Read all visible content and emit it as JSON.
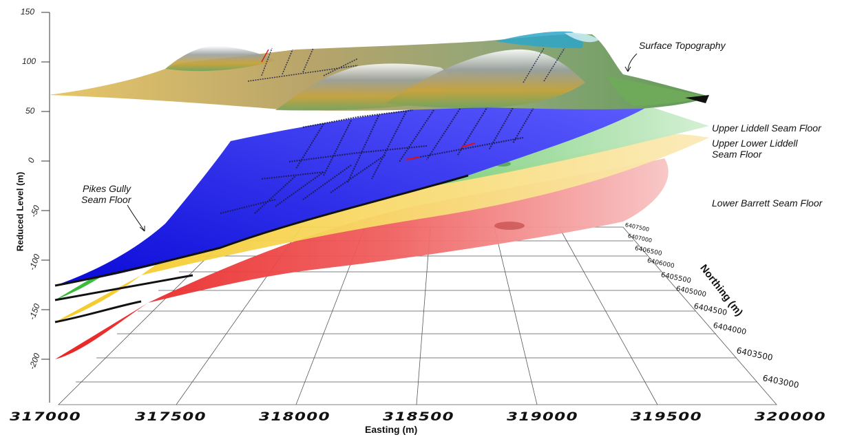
{
  "y_axis": {
    "title": "Reduced Level (m)",
    "ticks": [
      "150",
      "100",
      "50",
      "0",
      "-50",
      "-100",
      "-150",
      "-200"
    ]
  },
  "x_axis": {
    "title": "Easting (m)",
    "ticks": [
      "317000",
      "317500",
      "318000",
      "318500",
      "319000",
      "319500",
      "320000"
    ]
  },
  "northing_axis": {
    "title": "Northing (m)",
    "ticks": [
      "6407500",
      "6407000",
      "6406500",
      "6406000",
      "6405500",
      "6405000",
      "6404500",
      "6404000",
      "6403500",
      "6403000"
    ]
  },
  "annotations": {
    "surface": "Surface Topography",
    "upper_liddell": "Upper Liddell Seam Floor",
    "upper_lower_liddell_1": "Upper Lower Liddell",
    "upper_lower_liddell_2": "Seam Floor",
    "lower_barrett": "Lower Barrett Seam Floor",
    "pikes_gully_1": "Pikes Gully",
    "pikes_gully_2": "Seam Floor"
  },
  "colors": {
    "pikes_gully": "#1a1aff",
    "upper_liddell": "#3bbf3b",
    "upper_lower_liddell": "#f2d24a",
    "lower_barrett": "#ee2a2a",
    "topo_green": "#6faa5a",
    "topo_gold": "#d4a72c"
  }
}
